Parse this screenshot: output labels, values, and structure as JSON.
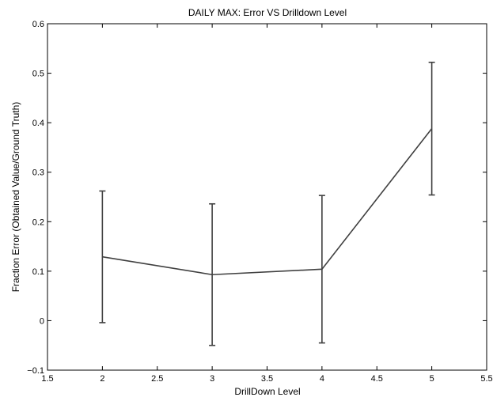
{
  "chart_data": {
    "type": "line",
    "title": "DAILY MAX: Error VS Drilldown Level",
    "xlabel": "DrillDown Level",
    "ylabel": "Fraction Error (Obtained Value/Ground Truth)",
    "xlim": [
      1.5,
      5.5
    ],
    "ylim": [
      -0.1,
      0.6
    ],
    "xticks": [
      1.5,
      2,
      2.5,
      3,
      3.5,
      4,
      4.5,
      5,
      5.5
    ],
    "xtick_labels": [
      "1.5",
      "2",
      "2.5",
      "3",
      "3.5",
      "4",
      "4.5",
      "5",
      "5.5"
    ],
    "yticks": [
      -0.1,
      0,
      0.1,
      0.2,
      0.3,
      0.4,
      0.5,
      0.6
    ],
    "ytick_labels": [
      "−0.1",
      "0",
      "0.1",
      "0.2",
      "0.3",
      "0.4",
      "0.5",
      "0.6"
    ],
    "grid": false,
    "line_color": "#404040",
    "series": [
      {
        "x": [
          2,
          3,
          4,
          5
        ],
        "y": [
          0.129,
          0.093,
          0.104,
          0.388
        ],
        "error_lower": [
          -0.004,
          -0.05,
          -0.045,
          0.254
        ],
        "error_upper": [
          0.262,
          0.236,
          0.253,
          0.522
        ]
      }
    ]
  }
}
